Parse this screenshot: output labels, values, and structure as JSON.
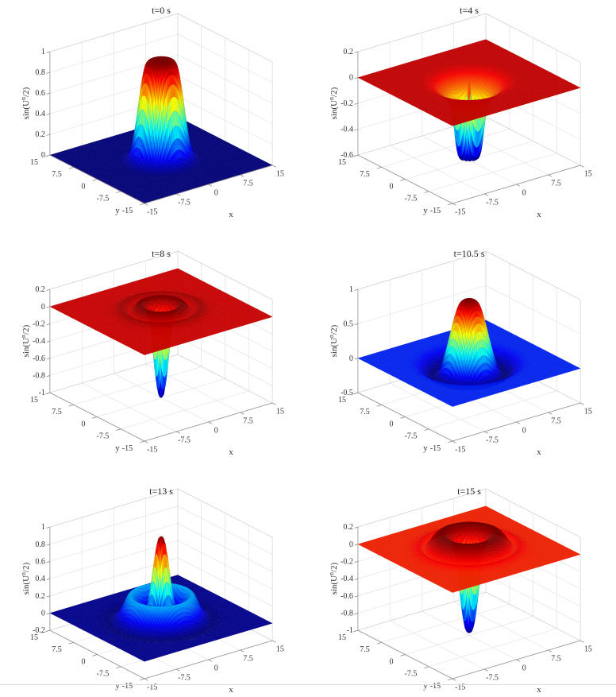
{
  "figure": {
    "background": "#ffffff",
    "bottom_divider_color": "#d9d9d9",
    "grid_line_color": "#e2e2e2",
    "box_edge_color": "#cfcfcf",
    "axis_line_color": "#8c8c8c",
    "tick_text_color": "#333333",
    "colormap_endpoints": {
      "low": "#00008f",
      "high": "#800000"
    }
  },
  "chart_data": [
    {
      "type": "surface",
      "title": "t=0 s",
      "xlabel": "x",
      "ylabel": "y",
      "zlabel": "sin(U^n/2)",
      "zlabel_parts": {
        "pre": "sin(U",
        "sup": "n",
        "post": "/2)"
      },
      "xlim": [
        -15,
        15
      ],
      "ylim": [
        -15,
        15
      ],
      "zlim": [
        0,
        1
      ],
      "xticks": [
        -15,
        -7.5,
        0,
        7.5,
        15
      ],
      "yticks": [
        -15,
        -7.5,
        0,
        7.5,
        15
      ],
      "zticks": [
        0,
        0.2,
        0.4,
        0.6,
        0.8,
        1
      ],
      "colormap": "jet",
      "view": {
        "azimuth": -37.5,
        "elevation": 30
      },
      "surface_description": "flat-topped cylindrical pulse of height ~1 at origin on a zero plane",
      "radial_profile": [
        [
          0,
          0.97
        ],
        [
          1.6,
          0.965
        ],
        [
          2.6,
          0.95
        ],
        [
          3.2,
          0.88
        ],
        [
          4.0,
          0.65
        ],
        [
          4.8,
          0.35
        ],
        [
          5.6,
          0.13
        ],
        [
          6.4,
          0.04
        ],
        [
          7.5,
          0.005
        ],
        [
          9,
          0
        ],
        [
          22,
          0
        ]
      ]
    },
    {
      "type": "surface",
      "title": "t=4 s",
      "xlabel": "x",
      "ylabel": "y",
      "zlabel": "sin(U^n/2)",
      "zlabel_parts": {
        "pre": "sin(U",
        "sup": "n",
        "post": "/2)"
      },
      "xlim": [
        -15,
        15
      ],
      "ylim": [
        -15,
        15
      ],
      "zlim": [
        -0.6,
        0.2
      ],
      "xticks": [
        -15,
        -7.5,
        0,
        7.5,
        15
      ],
      "yticks": [
        -15,
        -7.5,
        0,
        7.5,
        15
      ],
      "zticks": [
        -0.6,
        -0.4,
        -0.2,
        0,
        0.2
      ],
      "colormap": "jet",
      "view": {
        "azimuth": -37.5,
        "elevation": 30
      },
      "surface_description": "flat plane at 0 with shallow crater, deep narrow well to -0.6 and thin central spike",
      "radial_profile": [
        [
          0,
          0.05
        ],
        [
          0.18,
          0.02
        ],
        [
          0.4,
          -0.12
        ],
        [
          0.7,
          -0.35
        ],
        [
          1.0,
          -0.5
        ],
        [
          1.4,
          -0.57
        ],
        [
          1.9,
          -0.575
        ],
        [
          2.4,
          -0.5
        ],
        [
          2.9,
          -0.33
        ],
        [
          3.4,
          -0.2
        ],
        [
          4.0,
          -0.13
        ],
        [
          4.8,
          -0.09
        ],
        [
          5.8,
          -0.06
        ],
        [
          6.8,
          -0.03
        ],
        [
          8.0,
          -0.01
        ],
        [
          9.5,
          0
        ],
        [
          22,
          0
        ]
      ]
    },
    {
      "type": "surface",
      "title": "t=8 s",
      "xlabel": "x",
      "ylabel": "y",
      "zlabel": "sin(U^n/2)",
      "zlabel_parts": {
        "pre": "sin(U",
        "sup": "n",
        "post": "/2)"
      },
      "xlim": [
        -15,
        15
      ],
      "ylim": [
        -15,
        15
      ],
      "zlim": [
        -1,
        0.2
      ],
      "xticks": [
        -15,
        -7.5,
        0,
        7.5,
        15
      ],
      "yticks": [
        -15,
        -7.5,
        0,
        7.5,
        15
      ],
      "zticks": [
        -1,
        -0.8,
        -0.6,
        -0.4,
        -0.2,
        0,
        0.2
      ],
      "colormap": "jet",
      "view": {
        "azimuth": -37.5,
        "elevation": 30
      },
      "surface_description": "plane at 0 with raised annular wave, low central dome and deep funnel to -1",
      "radial_profile": [
        [
          0,
          -1
        ],
        [
          0.5,
          -0.96
        ],
        [
          1.0,
          -0.78
        ],
        [
          1.5,
          -0.5
        ],
        [
          2.0,
          -0.22
        ],
        [
          2.5,
          -0.05
        ],
        [
          3.0,
          0.04
        ],
        [
          3.8,
          0.09
        ],
        [
          4.6,
          0.08
        ],
        [
          5.3,
          0.03
        ],
        [
          6.0,
          0.0
        ],
        [
          6.8,
          0.03
        ],
        [
          7.6,
          0.05
        ],
        [
          8.4,
          0.03
        ],
        [
          9.2,
          0.01
        ],
        [
          10.5,
          0
        ],
        [
          22,
          0
        ]
      ]
    },
    {
      "type": "surface",
      "title": "t=10.5 s",
      "xlabel": "x",
      "ylabel": "y",
      "zlabel": "sin(U^n/2)",
      "zlabel_parts": {
        "pre": "sin(U",
        "sup": "n",
        "post": "/2)"
      },
      "xlim": [
        -15,
        15
      ],
      "ylim": [
        -15,
        15
      ],
      "zlim": [
        -0.5,
        1
      ],
      "xticks": [
        -15,
        -7.5,
        0,
        7.5,
        15
      ],
      "yticks": [
        -15,
        -7.5,
        0,
        7.5,
        15
      ],
      "zticks": [
        -0.5,
        0,
        0.5,
        1
      ],
      "colormap": "jet",
      "view": {
        "azimuth": -37.5,
        "elevation": 30
      },
      "surface_description": "blue plane at 0, central cone rising to ~0.93 with dark ring trough around it",
      "radial_profile": [
        [
          0,
          0.93
        ],
        [
          1.2,
          0.91
        ],
        [
          2.0,
          0.84
        ],
        [
          2.8,
          0.66
        ],
        [
          3.6,
          0.42
        ],
        [
          4.4,
          0.18
        ],
        [
          5.2,
          -0.02
        ],
        [
          6.0,
          -0.14
        ],
        [
          6.8,
          -0.18
        ],
        [
          7.6,
          -0.15
        ],
        [
          8.6,
          -0.08
        ],
        [
          9.6,
          -0.03
        ],
        [
          11,
          -0.005
        ],
        [
          12.5,
          0
        ],
        [
          22,
          0
        ]
      ]
    },
    {
      "type": "surface",
      "title": "t=13 s",
      "xlabel": "x",
      "ylabel": "y",
      "zlabel": "sin(U^n/2)",
      "zlabel_parts": {
        "pre": "sin(U",
        "sup": "n",
        "post": "/2)"
      },
      "xlim": [
        -15,
        15
      ],
      "ylim": [
        -15,
        15
      ],
      "zlim": [
        -0.2,
        1
      ],
      "xticks": [
        -15,
        -7.5,
        0,
        7.5,
        15
      ],
      "yticks": [
        -15,
        -7.5,
        0,
        7.5,
        15
      ],
      "zticks": [
        -0.2,
        0,
        0.2,
        0.4,
        0.6,
        0.8,
        1
      ],
      "colormap": "jet",
      "view": {
        "azimuth": -37.5,
        "elevation": 30
      },
      "surface_description": "dark blue plane at 0, sharp central spike to ~0.95 surrounded by cyan ring bump ~0.26",
      "radial_profile": [
        [
          0,
          0.95
        ],
        [
          0.6,
          0.91
        ],
        [
          1.2,
          0.72
        ],
        [
          1.8,
          0.45
        ],
        [
          2.4,
          0.22
        ],
        [
          3.0,
          0.09
        ],
        [
          3.8,
          0.07
        ],
        [
          4.6,
          0.16
        ],
        [
          5.4,
          0.26
        ],
        [
          6.2,
          0.26
        ],
        [
          7.0,
          0.17
        ],
        [
          7.9,
          0.07
        ],
        [
          8.8,
          0.01
        ],
        [
          9.8,
          -0.02
        ],
        [
          11,
          -0.01
        ],
        [
          12.5,
          0
        ],
        [
          22,
          0
        ]
      ]
    },
    {
      "type": "surface",
      "title": "t=15 s",
      "xlabel": "x",
      "ylabel": "y",
      "zlabel": "sin(U^n/2)",
      "zlabel_parts": {
        "pre": "sin(U",
        "sup": "n",
        "post": "/2)"
      },
      "xlim": [
        -15,
        15
      ],
      "ylim": [
        -15,
        15
      ],
      "zlim": [
        -1,
        0.2
      ],
      "xticks": [
        -15,
        -7.5,
        0,
        7.5,
        15
      ],
      "yticks": [
        -15,
        -7.5,
        0,
        7.5,
        15
      ],
      "zticks": [
        -1,
        -0.8,
        -0.6,
        -0.4,
        -0.2,
        0,
        0.2
      ],
      "colormap": "jet",
      "view": {
        "azimuth": -37.5,
        "elevation": 30
      },
      "surface_description": "red plane at 0 with broad dark-red dome ring (~0.18) and central well plunging to -1",
      "radial_profile": [
        [
          0,
          -0.97
        ],
        [
          0.7,
          -0.93
        ],
        [
          1.3,
          -0.74
        ],
        [
          1.9,
          -0.44
        ],
        [
          2.5,
          -0.12
        ],
        [
          3.1,
          0.06
        ],
        [
          3.9,
          0.14
        ],
        [
          4.9,
          0.18
        ],
        [
          6.0,
          0.175
        ],
        [
          7.0,
          0.12
        ],
        [
          7.8,
          0.05
        ],
        [
          8.6,
          0.0
        ],
        [
          9.4,
          0.04
        ],
        [
          10.4,
          0.02
        ],
        [
          11.6,
          0.005
        ],
        [
          13,
          0
        ],
        [
          22,
          0
        ]
      ]
    }
  ]
}
